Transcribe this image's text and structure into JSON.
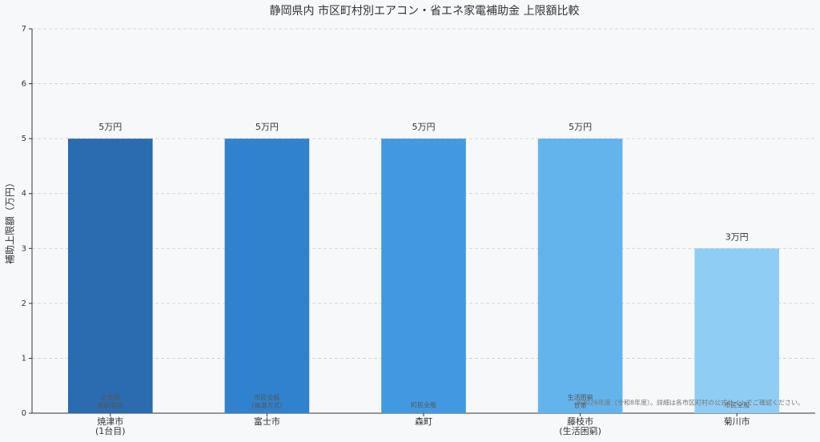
{
  "chart_data": {
    "type": "bar",
    "title": "静岡県内 市区町村別エアコン・省エネ家電補助金 上限額比較",
    "y_label": "補助上限額（万円）",
    "categories": [
      "焼津市\n(1台目)",
      "富士市",
      "森町",
      "藤枝市\n(生活困窮)",
      "菊川市"
    ],
    "values": [
      5,
      5,
      5,
      5,
      3
    ],
    "value_labels": [
      "5万円",
      "5万円",
      "5万円",
      "5万円",
      "3万円"
    ],
    "colors": [
      "#2b6cb0",
      "#3182ce",
      "#4299e1",
      "#63b3ed",
      "#90cdf4"
    ],
    "bar_notes": [
      "全世帯\n高齢者等",
      "市民全般\n(抽選方式)",
      "町民全般",
      "生活困窮\n世帯",
      "市民全般"
    ],
    "note": "※2026年度（令和8年度）。詳細は各市区町村の公式サイトでご確認ください。",
    "ylim": [
      0,
      7
    ],
    "yticks": [
      0,
      1,
      2,
      3,
      4,
      5,
      6,
      7
    ],
    "grid": true
  }
}
